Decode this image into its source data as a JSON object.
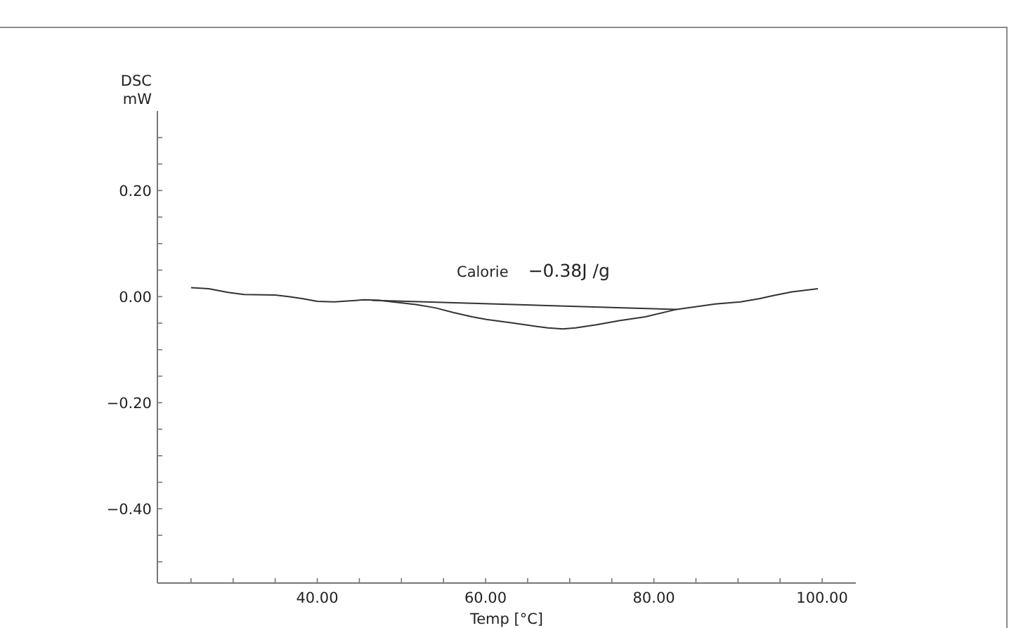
{
  "chart_data": {
    "type": "line",
    "xlabel": "Temp [°C]",
    "ylabel": "DSC\nmW",
    "annotations": [
      "Calorie",
      "−0.38J /g"
    ],
    "xlim": [
      21,
      104
    ],
    "xticks": [
      {
        "value": 25,
        "label": null
      },
      {
        "value": 30,
        "label": null
      },
      {
        "value": 35,
        "label": null
      },
      {
        "value": 40,
        "label": "40.00"
      },
      {
        "value": 45,
        "label": null
      },
      {
        "value": 50,
        "label": null
      },
      {
        "value": 55,
        "label": null
      },
      {
        "value": 60,
        "label": "60.00"
      },
      {
        "value": 65,
        "label": null
      },
      {
        "value": 70,
        "label": null
      },
      {
        "value": 75,
        "label": null
      },
      {
        "value": 80,
        "label": "80.00"
      },
      {
        "value": 85,
        "label": null
      },
      {
        "value": 90,
        "label": null
      },
      {
        "value": 95,
        "label": null
      },
      {
        "value": 100,
        "label": "100.00"
      }
    ],
    "ylim": [
      -0.54,
      0.35
    ],
    "yticks": [
      {
        "value": 0.3,
        "label": null
      },
      {
        "value": 0.25,
        "label": null
      },
      {
        "value": 0.2,
        "label": "0.20"
      },
      {
        "value": 0.15,
        "label": null
      },
      {
        "value": 0.1,
        "label": null
      },
      {
        "value": 0.05,
        "label": null
      },
      {
        "value": 0,
        "label": "0.00"
      },
      {
        "value": -0.05,
        "label": null
      },
      {
        "value": -0.1,
        "label": null
      },
      {
        "value": -0.15,
        "label": null
      },
      {
        "value": -0.2,
        "label": "−0.20"
      },
      {
        "value": -0.25,
        "label": null
      },
      {
        "value": -0.3,
        "label": null
      },
      {
        "value": -0.35,
        "label": null
      },
      {
        "value": -0.4,
        "label": "−0.40"
      },
      {
        "value": -0.45,
        "label": null
      },
      {
        "value": -0.5,
        "label": null
      }
    ],
    "series": [
      {
        "color": "#333333",
        "x": [
          25.0,
          27.1,
          29.4,
          31.3,
          35.0,
          36.6,
          38.3,
          40.0,
          42.0,
          43.9,
          45.6,
          47.3,
          49.5,
          51.7,
          54.0,
          56.2,
          58.4,
          60.1,
          62.9,
          65.1,
          67.4,
          69.2,
          70.7,
          73.2,
          76.0,
          79.0,
          82.7,
          87.3,
          90.3,
          92.5,
          94.2,
          96.4,
          99.5
        ],
        "values": [
          0.017,
          0.015,
          0.008,
          0.004,
          0.003,
          0.0,
          -0.004,
          -0.009,
          -0.01,
          -0.008,
          -0.006,
          -0.007,
          -0.011,
          -0.015,
          -0.021,
          -0.03,
          -0.038,
          -0.043,
          -0.049,
          -0.054,
          -0.059,
          -0.061,
          -0.059,
          -0.053,
          -0.045,
          -0.038,
          -0.024,
          -0.014,
          -0.01,
          -0.004,
          0.002,
          0.009,
          0.015
        ]
      },
      {
        "color": "#333333",
        "x": [
          46.5,
          82.7
        ],
        "values": [
          -0.007,
          -0.024
        ]
      }
    ]
  }
}
